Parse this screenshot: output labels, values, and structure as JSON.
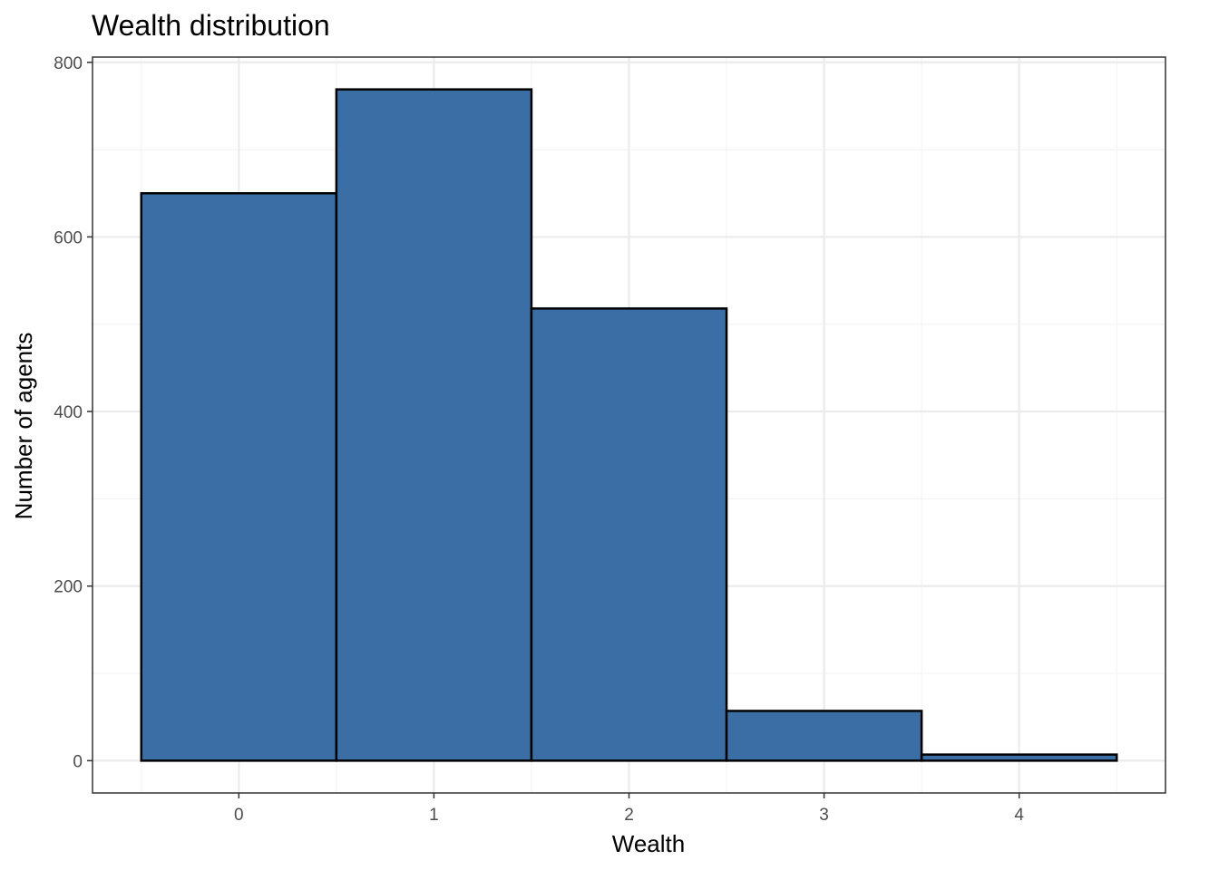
{
  "chart_data": {
    "type": "bar",
    "title": "Wealth distribution",
    "xlabel": "Wealth",
    "ylabel": "Number of agents",
    "categories": [
      0,
      1,
      2,
      3,
      4
    ],
    "values": [
      650,
      769,
      518,
      57,
      7
    ],
    "bin_width": 1,
    "xlim": [
      -0.75,
      4.75
    ],
    "ylim": [
      -37,
      806
    ],
    "x_ticks": [
      0,
      1,
      2,
      3,
      4
    ],
    "y_ticks": [
      0,
      200,
      400,
      600,
      800
    ],
    "grid": true,
    "legend": "none",
    "colors": {
      "bar_fill": "#3A6EA5",
      "bar_stroke": "#000000",
      "grid_major": "#EBEBEB",
      "grid_minor": "#F4F4F4",
      "panel_border": "#333333"
    }
  }
}
